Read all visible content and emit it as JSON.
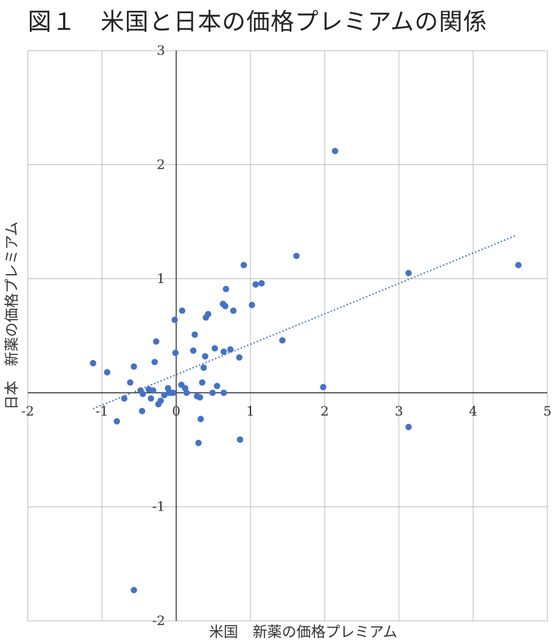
{
  "title": "図１　米国と日本の価格プレミアムの関係",
  "chart_data": {
    "type": "scatter",
    "xlabel": "米国　新薬の価格プレミアム",
    "ylabel": "日本　新薬の価格プレミアム",
    "xlim": [
      -2,
      5
    ],
    "ylim": [
      -2,
      3
    ],
    "xticks": [
      "-2",
      "-1",
      "0",
      "1",
      "2",
      "3",
      "4",
      "5"
    ],
    "yticks": [
      "3",
      "2",
      "1",
      "-1",
      "-2"
    ],
    "grid": true,
    "point_color": "#4472C4",
    "trendline": {
      "style": "dotted",
      "x_start": -1.12,
      "y_start": -0.14,
      "x_end": 4.58,
      "y_end": 1.38
    },
    "points": [
      {
        "x": -1.12,
        "y": 0.26
      },
      {
        "x": -0.93,
        "y": 0.18
      },
      {
        "x": -0.8,
        "y": -0.25
      },
      {
        "x": -0.7,
        "y": -0.05
      },
      {
        "x": -0.62,
        "y": 0.09
      },
      {
        "x": -0.57,
        "y": 0.23
      },
      {
        "x": -0.57,
        "y": -1.73
      },
      {
        "x": -0.48,
        "y": 0.02
      },
      {
        "x": -0.45,
        "y": -0.01
      },
      {
        "x": -0.46,
        "y": -0.16
      },
      {
        "x": -0.37,
        "y": 0.03
      },
      {
        "x": -0.34,
        "y": -0.05
      },
      {
        "x": -0.31,
        "y": 0.02
      },
      {
        "x": -0.29,
        "y": 0.27
      },
      {
        "x": -0.27,
        "y": 0.45
      },
      {
        "x": -0.24,
        "y": -0.1
      },
      {
        "x": -0.21,
        "y": -0.07
      },
      {
        "x": -0.16,
        "y": -0.02
      },
      {
        "x": -0.11,
        "y": 0.04
      },
      {
        "x": -0.1,
        "y": 0.0
      },
      {
        "x": -0.07,
        "y": 0.0
      },
      {
        "x": -0.04,
        "y": 0.0
      },
      {
        "x": -0.02,
        "y": 0.64
      },
      {
        "x": -0.01,
        "y": 0.35
      },
      {
        "x": 0.07,
        "y": 0.07
      },
      {
        "x": 0.08,
        "y": 0.72
      },
      {
        "x": 0.12,
        "y": 0.04
      },
      {
        "x": 0.14,
        "y": 0.0
      },
      {
        "x": 0.23,
        "y": 0.37
      },
      {
        "x": 0.25,
        "y": 0.51
      },
      {
        "x": 0.28,
        "y": -0.03
      },
      {
        "x": 0.3,
        "y": -0.44
      },
      {
        "x": 0.32,
        "y": -0.04
      },
      {
        "x": 0.33,
        "y": -0.23
      },
      {
        "x": 0.35,
        "y": 0.09
      },
      {
        "x": 0.37,
        "y": 0.22
      },
      {
        "x": 0.39,
        "y": 0.32
      },
      {
        "x": 0.4,
        "y": 0.66
      },
      {
        "x": 0.43,
        "y": 0.69
      },
      {
        "x": 0.49,
        "y": 0.0
      },
      {
        "x": 0.52,
        "y": 0.39
      },
      {
        "x": 0.55,
        "y": 0.06
      },
      {
        "x": 0.64,
        "y": 0.36
      },
      {
        "x": 0.63,
        "y": 0.78
      },
      {
        "x": 0.64,
        "y": 0.0
      },
      {
        "x": 0.66,
        "y": 0.76
      },
      {
        "x": 0.67,
        "y": 0.91
      },
      {
        "x": 0.73,
        "y": 0.38
      },
      {
        "x": 0.77,
        "y": 0.72
      },
      {
        "x": 0.85,
        "y": 0.31
      },
      {
        "x": 0.86,
        "y": -0.41
      },
      {
        "x": 0.91,
        "y": 1.12
      },
      {
        "x": 1.02,
        "y": 0.77
      },
      {
        "x": 1.07,
        "y": 0.95
      },
      {
        "x": 1.15,
        "y": 0.96
      },
      {
        "x": 1.43,
        "y": 0.46
      },
      {
        "x": 1.62,
        "y": 1.2
      },
      {
        "x": 1.98,
        "y": 0.05
      },
      {
        "x": 2.14,
        "y": 2.12
      },
      {
        "x": 3.13,
        "y": 1.05
      },
      {
        "x": 3.13,
        "y": -0.3
      },
      {
        "x": 4.61,
        "y": 1.12
      }
    ]
  }
}
